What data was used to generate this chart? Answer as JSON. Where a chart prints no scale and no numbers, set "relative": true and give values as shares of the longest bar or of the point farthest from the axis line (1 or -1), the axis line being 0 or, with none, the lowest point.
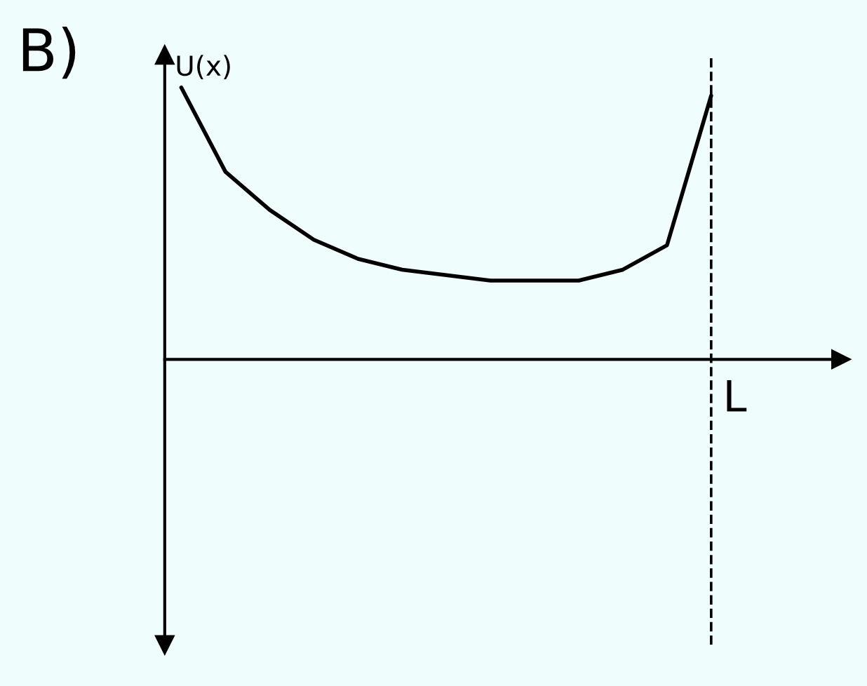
{
  "chart_data": {
    "type": "line",
    "title": "B)",
    "ylabel": "U(x)",
    "relative": true,
    "categories": [
      null,
      null,
      null,
      null,
      null,
      null,
      null,
      null,
      null,
      null,
      null,
      null,
      null
    ],
    "series": [
      {
        "color": "#000000",
        "values": [
          1.0,
          0.69,
          0.55,
          0.44,
          0.37,
          0.33,
          0.31,
          0.29,
          0.29,
          0.29,
          0.33,
          0.42,
          0.97
        ]
      }
    ],
    "ref_lines": [
      {
        "axis": "x",
        "label": "L",
        "line_style": "dashed",
        "color": "#000000"
      }
    ],
    "legend": false,
    "marker": "none",
    "line_style": "solid"
  }
}
